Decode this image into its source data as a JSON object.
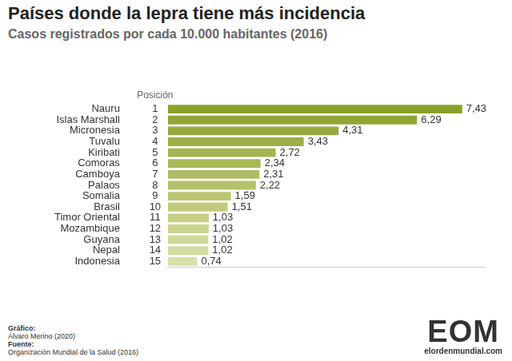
{
  "chart_data": {
    "type": "bar",
    "orientation": "horizontal",
    "title": "Países donde la lepra tiene más incidencia",
    "subtitle": "Casos registrados por cada 10.000 habitantes (2016)",
    "position_header": "Posición",
    "positions": [
      1,
      2,
      3,
      4,
      5,
      6,
      7,
      8,
      9,
      10,
      11,
      12,
      13,
      14,
      15
    ],
    "categories": [
      "Nauru",
      "Islas Marshall",
      "Micronesia",
      "Tuvalu",
      "Kiribati",
      "Comoras",
      "Camboya",
      "Palaos",
      "Somalia",
      "Brasil",
      "Timor Oriental",
      "Mozambique",
      "Guyana",
      "Nepal",
      "Indonesia"
    ],
    "values": [
      7.43,
      6.29,
      4.31,
      3.43,
      2.72,
      2.34,
      2.31,
      2.22,
      1.59,
      1.51,
      1.03,
      1.03,
      1.02,
      1.02,
      0.74
    ],
    "value_labels": [
      "7,43",
      "6,29",
      "4,31",
      "3,43",
      "2,72",
      "2,34",
      "2,31",
      "2,22",
      "1,59",
      "1,51",
      "1,03",
      "1,03",
      "1,02",
      "1,02",
      "0,74"
    ],
    "colors": [
      "#8aa12b",
      "#90a634",
      "#97aa3d",
      "#9daf46",
      "#a3b34f",
      "#a9b858",
      "#afbc61",
      "#b5c16a",
      "#bbc573",
      "#c1ca7c",
      "#c6ce85",
      "#cbd38f",
      "#d0d798",
      "#d5dba1",
      "#d9dfaa"
    ],
    "xlim": [
      0,
      8
    ],
    "data_labels": true,
    "tick_labels": "y",
    "grid": false
  },
  "credits": {
    "graphic_label": "Gráfico:",
    "graphic": "Álvaro Merino (2020)",
    "source_label": "Fuente:",
    "source": "Organización Mundial de la Salud (2016)"
  },
  "logo": {
    "text": "EOM",
    "url": "elordenmundial.com"
  }
}
